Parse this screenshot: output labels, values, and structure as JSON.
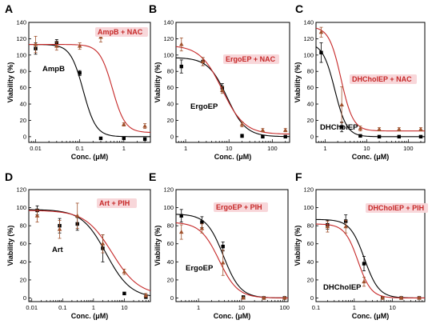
{
  "colors": {
    "control": "#000000",
    "treated": "#c62828",
    "treated_marker": "#a0522d",
    "legend_bg": "#f8d7da"
  },
  "chart_data": [
    {
      "panel": "A",
      "type": "scatter",
      "xscale": "log",
      "xlim": [
        0.007,
        4
      ],
      "ylim": [
        -7,
        140
      ],
      "xticks": [
        0.01,
        0.1,
        1
      ],
      "xtick_labels": [
        "0.01",
        "0.1",
        "1"
      ],
      "yticks": [
        0,
        20,
        40,
        60,
        80,
        100,
        120,
        140
      ],
      "xlabel": "Conc. (μM)",
      "ylabel": "Viability (%)",
      "legend": "AmpB + NAC",
      "legend_position": "top-right",
      "series_label": "AmpB",
      "series": [
        {
          "name": "AmpB",
          "color": "control",
          "fit": {
            "top": 113,
            "bottom": 0,
            "ic50": 0.12,
            "hill": 3
          },
          "x": [
            0.01,
            0.03,
            0.1,
            0.3,
            1,
            3
          ],
          "y": [
            108,
            115,
            78,
            -2,
            -2,
            -3
          ],
          "err": [
            7,
            4,
            3,
            0,
            0,
            0
          ]
        },
        {
          "name": "AmpB + NAC",
          "color": "treated",
          "fit": {
            "top": 113,
            "bottom": 5,
            "ic50": 0.55,
            "hill": 3
          },
          "x": [
            0.01,
            0.03,
            0.1,
            0.3,
            1,
            3
          ],
          "y": [
            113,
            111,
            111,
            122,
            15,
            13
          ],
          "err": [
            10,
            5,
            4,
            6,
            2,
            3
          ]
        }
      ]
    },
    {
      "panel": "B",
      "type": "scatter",
      "xscale": "log",
      "xlim": [
        0.6,
        250
      ],
      "ylim": [
        -7,
        140
      ],
      "xticks": [
        1,
        10,
        100
      ],
      "xtick_labels": [
        "1",
        "10",
        "100"
      ],
      "yticks": [
        0,
        20,
        40,
        60,
        80,
        100,
        120,
        140
      ],
      "xlabel": "Conc. (μM)",
      "ylabel": "Viability (%)",
      "legend": "ErgoEP + NAC",
      "legend_position": "top-right",
      "series_label": "ErgoEP",
      "series": [
        {
          "name": "ErgoEP",
          "color": "control",
          "fit": {
            "top": 97,
            "bottom": 0,
            "ic50": 9,
            "hill": 2
          },
          "x": [
            0.8,
            2.5,
            7,
            20,
            60,
            200
          ],
          "y": [
            86,
            92,
            60,
            1,
            0,
            0
          ],
          "err": [
            8,
            5,
            5,
            2,
            1,
            1
          ]
        },
        {
          "name": "ErgoEP + NAC",
          "color": "treated",
          "fit": {
            "top": 112,
            "bottom": 3,
            "ic50": 7,
            "hill": 1.7
          },
          "x": [
            0.8,
            2.5,
            7,
            20,
            60,
            200
          ],
          "y": [
            113,
            92,
            57,
            15,
            8,
            8
          ],
          "err": [
            8,
            5,
            4,
            3,
            2,
            2
          ]
        }
      ]
    },
    {
      "panel": "C",
      "type": "scatter",
      "xscale": "log",
      "xlim": [
        0.6,
        250
      ],
      "ylim": [
        -7,
        140
      ],
      "xticks": [
        1,
        10,
        100
      ],
      "xtick_labels": [
        "1",
        "10",
        "100"
      ],
      "yticks": [
        0,
        20,
        40,
        60,
        80,
        100,
        120,
        140
      ],
      "xlabel": "Conc. (μM)",
      "ylabel": "Viability (%)",
      "legend": "DHCholEP + NAC",
      "legend_position": "top-right",
      "series_label": "DHCholEP",
      "series": [
        {
          "name": "DHCholEP",
          "color": "control",
          "fit": {
            "top": 115,
            "bottom": 0,
            "ic50": 1.7,
            "hill": 3
          },
          "x": [
            0.8,
            2.5,
            7,
            20,
            60,
            200
          ],
          "y": [
            103,
            12,
            1,
            0,
            0,
            0
          ],
          "err": [
            12,
            6,
            1,
            1,
            1,
            1
          ]
        },
        {
          "name": "DHCholEP + NAC",
          "color": "treated",
          "fit": {
            "top": 135,
            "bottom": 7,
            "ic50": 2.4,
            "hill": 3
          },
          "x": [
            0.8,
            2.5,
            7,
            20,
            60,
            200
          ],
          "y": [
            128,
            39,
            10,
            9,
            9,
            9
          ],
          "err": [
            6,
            22,
            3,
            2,
            2,
            2
          ]
        }
      ]
    },
    {
      "panel": "D",
      "type": "scatter",
      "xscale": "log",
      "xlim": [
        0.008,
        70
      ],
      "ylim": [
        -4,
        120
      ],
      "xticks": [
        0.01,
        0.1,
        1,
        10
      ],
      "xtick_labels": [
        "0.01",
        "0.1",
        "1",
        "10"
      ],
      "yticks": [
        0,
        20,
        40,
        60,
        80,
        100,
        120
      ],
      "xlabel": "Conc. (μM)",
      "ylabel": "Viability (%)",
      "legend": "Art + PIH",
      "legend_position": "top-right",
      "series_label": "Art",
      "series": [
        {
          "name": "Art",
          "color": "control",
          "fit": {
            "top": 98,
            "bottom": 0,
            "ic50": 2.6,
            "hill": 1.1
          },
          "x": [
            0.015,
            0.08,
            0.3,
            2,
            10,
            50
          ],
          "y": [
            97,
            80,
            82,
            55,
            5,
            1
          ],
          "err": [
            5,
            8,
            7,
            15,
            1,
            1
          ]
        },
        {
          "name": "Art + PIH",
          "color": "treated",
          "fit": {
            "top": 97,
            "bottom": 3,
            "ic50": 4,
            "hill": 1
          },
          "x": [
            0.015,
            0.08,
            0.3,
            2,
            10,
            50
          ],
          "y": [
            91,
            76,
            91,
            60,
            29,
            3
          ],
          "err": [
            7,
            10,
            14,
            10,
            3,
            2
          ]
        }
      ]
    },
    {
      "panel": "E",
      "type": "scatter",
      "xscale": "log",
      "xlim": [
        0.3,
        120
      ],
      "ylim": [
        -4,
        120
      ],
      "xticks": [
        1,
        10,
        100
      ],
      "xtick_labels": [
        "1",
        "10",
        "100"
      ],
      "yticks": [
        0,
        20,
        40,
        60,
        80,
        100,
        120
      ],
      "xlabel": "Conc. (μM)",
      "ylabel": "Viability (%)",
      "legend": "ErgoEP + PIH",
      "legend_position": "top-right",
      "series_label": "ErgoEP",
      "series": [
        {
          "name": "ErgoEP",
          "color": "control",
          "fit": {
            "top": 93,
            "bottom": 0,
            "ic50": 3.8,
            "hill": 2.2
          },
          "x": [
            0.4,
            1.2,
            3.7,
            11,
            33,
            100
          ],
          "y": [
            91,
            84,
            57,
            1,
            0,
            0
          ],
          "err": [
            7,
            6,
            5,
            1,
            1,
            1
          ]
        },
        {
          "name": "ErgoEP + PIH",
          "color": "treated",
          "fit": {
            "top": 84,
            "bottom": 0,
            "ic50": 3,
            "hill": 2
          },
          "x": [
            0.4,
            1.2,
            3.7,
            11,
            33,
            100
          ],
          "y": [
            73,
            77,
            39,
            0,
            0,
            0
          ],
          "err": [
            8,
            5,
            14,
            1,
            1,
            1
          ]
        }
      ]
    },
    {
      "panel": "F",
      "type": "scatter",
      "xscale": "log",
      "xlim": [
        0.1,
        70
      ],
      "ylim": [
        -4,
        120
      ],
      "xticks": [
        0.1,
        1,
        10
      ],
      "xtick_labels": [
        "0.1",
        "1",
        "10"
      ],
      "yticks": [
        0,
        20,
        40,
        60,
        80,
        100,
        120
      ],
      "xlabel": "Conc. (μM)",
      "ylabel": "Viability (%)",
      "legend": "DHCholEP + PIH",
      "legend_position": "top-right",
      "series_label": "DHCholEP",
      "series": [
        {
          "name": "DHCholEP",
          "color": "control",
          "fit": {
            "top": 87,
            "bottom": 0,
            "ic50": 1.85,
            "hill": 2.3
          },
          "x": [
            0.2,
            0.6,
            1.8,
            5.5,
            17,
            50
          ],
          "y": [
            81,
            85,
            38,
            0,
            0,
            0
          ],
          "err": [
            5,
            7,
            8,
            1,
            1,
            1
          ]
        },
        {
          "name": "DHCholEP + PIH",
          "color": "treated",
          "fit": {
            "top": 82,
            "bottom": 0,
            "ic50": 1.25,
            "hill": 2.5
          },
          "x": [
            0.2,
            0.6,
            1.8,
            5.5,
            17,
            50
          ],
          "y": [
            79,
            79,
            18,
            0,
            0,
            0
          ],
          "err": [
            6,
            7,
            5,
            1,
            1,
            1
          ]
        }
      ]
    }
  ]
}
